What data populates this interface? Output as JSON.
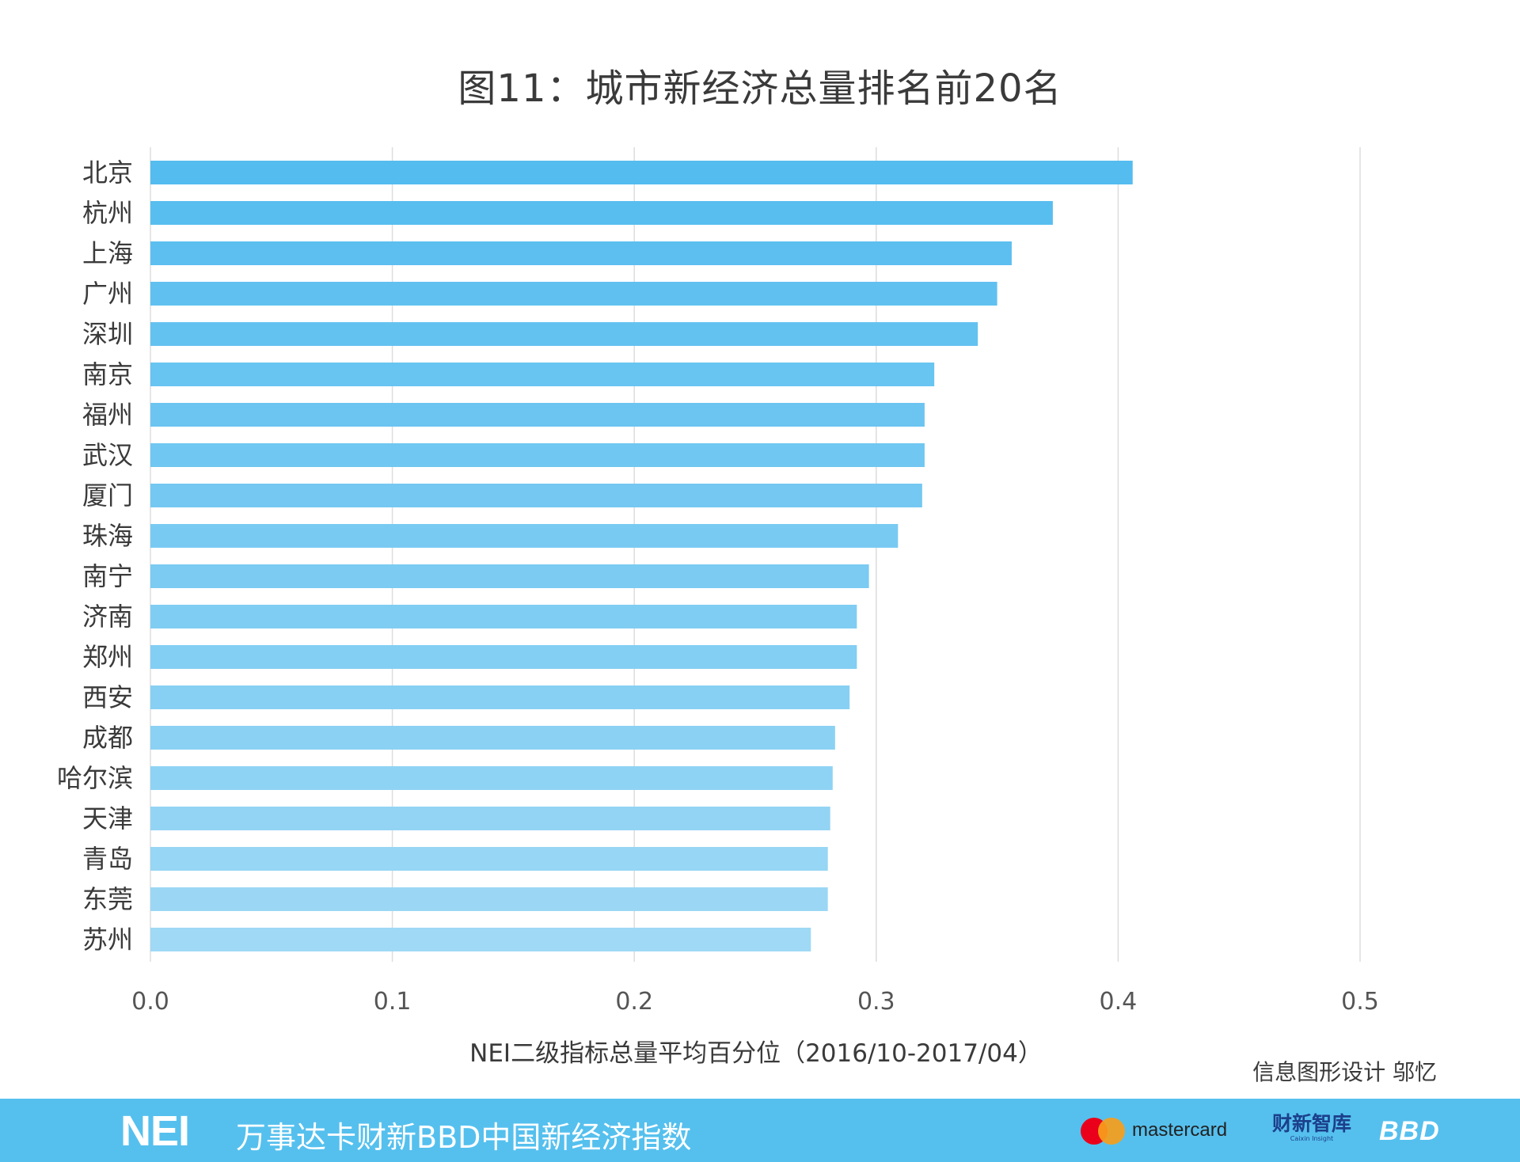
{
  "chart_data": {
    "type": "bar",
    "orientation": "horizontal",
    "title": "图11：城市新经济总量排名前20名",
    "xlabel": "NEI二级指标总量平均百分位（2016/10-2017/04）",
    "ylabel": "",
    "xlim": [
      0,
      0.5
    ],
    "x_ticks": [
      "0.0",
      "0.1",
      "0.2",
      "0.3",
      "0.4",
      "0.5"
    ],
    "grid": true,
    "categories": [
      "北京",
      "杭州",
      "上海",
      "广州",
      "深圳",
      "南京",
      "福州",
      "武汉",
      "厦门",
      "珠海",
      "南宁",
      "济南",
      "郑州",
      "西安",
      "成都",
      "哈尔滨",
      "天津",
      "青岛",
      "东莞",
      "苏州"
    ],
    "values": [
      0.406,
      0.373,
      0.356,
      0.35,
      0.342,
      0.324,
      0.32,
      0.32,
      0.319,
      0.309,
      0.297,
      0.292,
      0.292,
      0.289,
      0.283,
      0.282,
      0.281,
      0.28,
      0.28,
      0.273
    ],
    "colors": {
      "bar_top": "#54bcef",
      "bar_bottom": "#9fd9f5",
      "grid": "#dddddd"
    }
  },
  "credit": "信息图形设计 邬忆",
  "footer": {
    "logo": "NEI",
    "index_name": "万事达卡财新BBD中国新经济指数",
    "mastercard": "mastercard",
    "caixin_name": "财新智库",
    "caixin_sub": "Caixin Insight",
    "bbd": "BBD",
    "background_color": "#55c0ee"
  }
}
